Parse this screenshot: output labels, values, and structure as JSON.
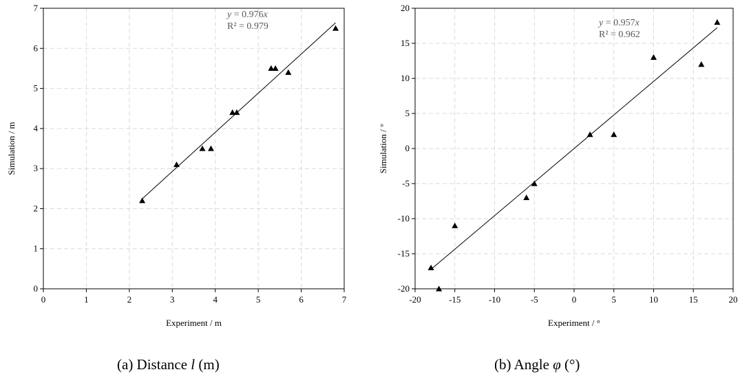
{
  "chart_data": [
    {
      "type": "scatter",
      "xlabel": "Experiment / m",
      "ylabel": "Simulation / m",
      "xlim": [
        0,
        7
      ],
      "ylim": [
        0,
        7
      ],
      "xticks": [
        0,
        1,
        2,
        3,
        4,
        5,
        6,
        7
      ],
      "yticks": [
        0,
        1,
        2,
        3,
        4,
        5,
        6,
        7
      ],
      "grid": true,
      "marker": "triangle",
      "points": [
        {
          "x": 2.3,
          "y": 2.2
        },
        {
          "x": 3.1,
          "y": 3.1
        },
        {
          "x": 3.7,
          "y": 3.5
        },
        {
          "x": 3.9,
          "y": 3.5
        },
        {
          "x": 4.4,
          "y": 4.4
        },
        {
          "x": 4.5,
          "y": 4.4
        },
        {
          "x": 5.3,
          "y": 5.5
        },
        {
          "x": 5.4,
          "y": 5.5
        },
        {
          "x": 5.7,
          "y": 5.4
        },
        {
          "x": 6.8,
          "y": 6.5
        }
      ],
      "fit": {
        "slope": 0.976,
        "x_range": [
          2.3,
          6.8
        ]
      },
      "annotation": {
        "equation_prefix": "y",
        "equation_rest": " = 0.976",
        "equation_var": "x",
        "r2": "R² = 0.979"
      },
      "caption": {
        "prefix": "(a) Distance ",
        "symbol": "l",
        "suffix": " (m)"
      }
    },
    {
      "type": "scatter",
      "xlabel": "Experiment / °",
      "ylabel": "Simulation / °",
      "xlim": [
        -20,
        20
      ],
      "ylim": [
        -20,
        20
      ],
      "xticks": [
        -20,
        -15,
        -10,
        -5,
        0,
        5,
        10,
        15,
        20
      ],
      "yticks": [
        -20,
        -15,
        -10,
        -5,
        0,
        5,
        10,
        15,
        20
      ],
      "grid": true,
      "marker": "triangle",
      "points": [
        {
          "x": -18,
          "y": -17
        },
        {
          "x": -17,
          "y": -20
        },
        {
          "x": -15,
          "y": -11
        },
        {
          "x": -6,
          "y": -7
        },
        {
          "x": -5,
          "y": -5
        },
        {
          "x": 2,
          "y": 2
        },
        {
          "x": 5,
          "y": 2
        },
        {
          "x": 10,
          "y": 13
        },
        {
          "x": 16,
          "y": 12
        },
        {
          "x": 18,
          "y": 18
        }
      ],
      "fit": {
        "slope": 0.957,
        "x_range": [
          -18,
          18
        ]
      },
      "annotation": {
        "equation_prefix": "y",
        "equation_rest": " = 0.957",
        "equation_var": "x",
        "r2": "R² = 0.962"
      },
      "caption": {
        "prefix": "(b) Angle ",
        "symbol": "φ",
        "suffix": " (°)"
      }
    }
  ]
}
